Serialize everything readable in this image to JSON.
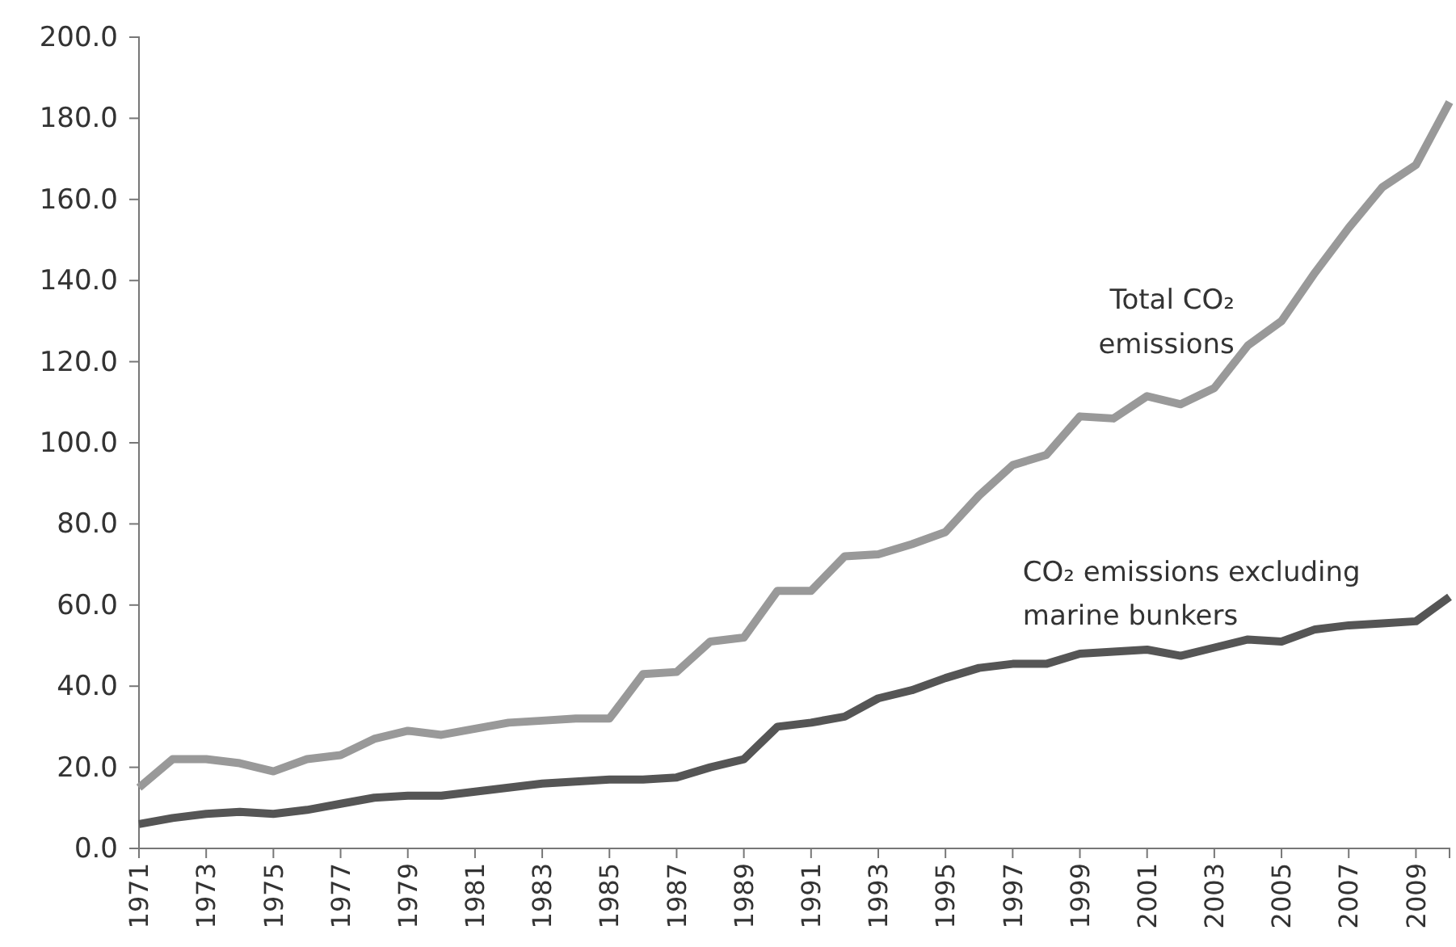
{
  "chart_data": {
    "type": "line",
    "categories": [
      "1971",
      null,
      "1973",
      null,
      "1975",
      null,
      "1977",
      null,
      "1979",
      null,
      "1981",
      null,
      "1983",
      null,
      "1985",
      null,
      "1987",
      null,
      "1989",
      null,
      "1991",
      null,
      "1993",
      null,
      "1995",
      null,
      "1997",
      null,
      "1999",
      null,
      "2001",
      null,
      "2003",
      null,
      "2005",
      null,
      "2007",
      null,
      "2009",
      null
    ],
    "series": [
      {
        "name": "Total CO₂ emissions",
        "color": "#999999",
        "values": [
          15,
          22,
          22,
          21,
          19,
          22,
          23,
          27,
          29,
          28,
          29.5,
          31,
          31.5,
          32,
          32,
          43,
          43.5,
          51,
          52,
          63.5,
          63.5,
          72,
          72.5,
          75,
          78,
          87,
          94.5,
          97,
          106.5,
          106,
          111.5,
          109.5,
          113.5,
          124,
          130,
          142,
          153,
          163,
          168.5,
          184
        ]
      },
      {
        "name": "CO₂ emissions excluding marine bunkers",
        "color": "#555555",
        "values": [
          6,
          7.5,
          8.5,
          9,
          8.5,
          9.5,
          11,
          12.5,
          13,
          13,
          14,
          15,
          16,
          16.5,
          17,
          17,
          17.5,
          20,
          22,
          30,
          31,
          32.5,
          37,
          39,
          42,
          44.5,
          45.5,
          45.5,
          48,
          48.5,
          49,
          47.5,
          49.5,
          51.5,
          51,
          54,
          55,
          55.5,
          56,
          62
        ]
      }
    ],
    "ylim": [
      0,
      200
    ],
    "yticks": [
      {
        "value": 0,
        "label": "0.0"
      },
      {
        "value": 20,
        "label": "20.0"
      },
      {
        "value": 40,
        "label": "40.0"
      },
      {
        "value": 60,
        "label": "60.0"
      },
      {
        "value": 80,
        "label": "80.0"
      },
      {
        "value": 100,
        "label": "100.0"
      },
      {
        "value": 120,
        "label": "120.0"
      },
      {
        "value": 140,
        "label": "140.0"
      },
      {
        "value": 160,
        "label": "160.0"
      },
      {
        "value": 180,
        "label": "180.0"
      },
      {
        "value": 200,
        "label": "200.0"
      }
    ],
    "grid": false,
    "legend": false,
    "marker": "none",
    "line_style": "solid"
  }
}
